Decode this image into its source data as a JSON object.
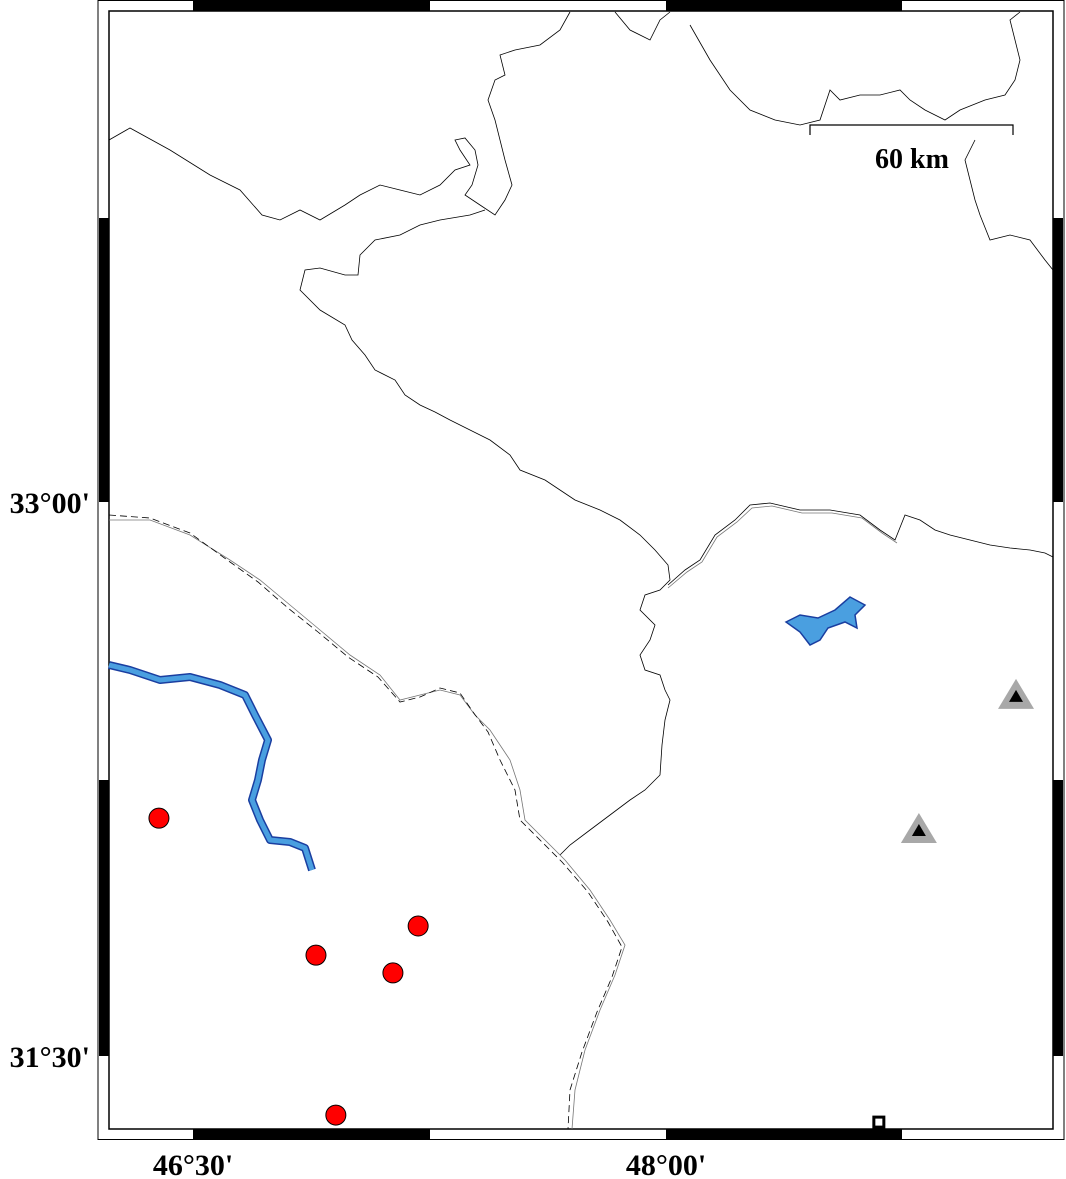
{
  "map": {
    "lon_range": [
      "46°13'",
      "49°13'"
    ],
    "axis_labels": {
      "x": [
        {
          "text": "46°30'",
          "lon": 46.5
        },
        {
          "text": "48°00'",
          "lon": 48.0
        }
      ],
      "y": [
        {
          "text": "33°00'",
          "lat": 33.0
        },
        {
          "text": "31°30'",
          "lat": 31.5
        }
      ]
    },
    "scale_bar": {
      "label": "60 km"
    },
    "colors": {
      "water": "#4a9fe0",
      "water_outline": "#1a3ea0",
      "event": "#ff0000",
      "station_outer": "#a8a8a8",
      "station_inner": "#000000"
    },
    "events": [
      {
        "lon": 46.392,
        "lat": 32.144
      },
      {
        "lon": 46.89,
        "lat": 31.773
      },
      {
        "lon": 47.214,
        "lat": 31.852
      },
      {
        "lon": 47.134,
        "lat": 31.725
      },
      {
        "lon": 46.953,
        "lat": 31.34
      }
    ],
    "stations": [
      {
        "lon": 49.11,
        "lat": 32.475
      },
      {
        "lon": 48.802,
        "lat": 32.112
      }
    ],
    "square_marker": {
      "lon": 48.675,
      "lat": 31.321
    }
  }
}
